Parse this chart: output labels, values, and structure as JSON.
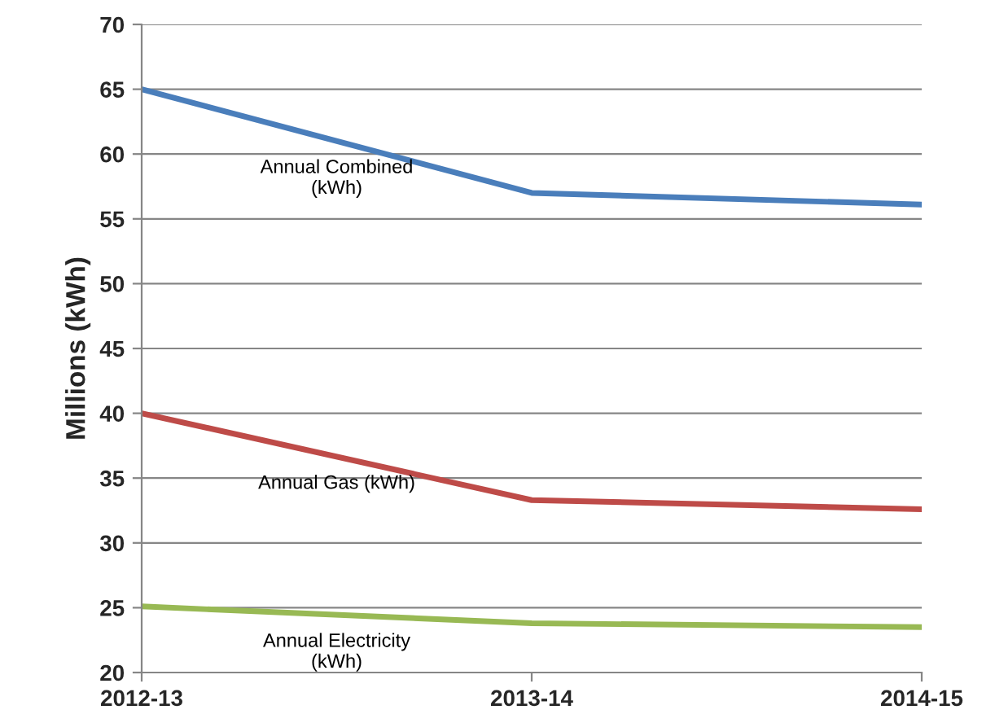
{
  "chart_data": {
    "type": "line",
    "ylabel": "Millions (kWh)",
    "categories": [
      "2012-13",
      "2013-14",
      "2014-15"
    ],
    "series": [
      {
        "name": "Annual Combined\n(kWh)",
        "color": "#4a7ebb",
        "values": [
          65,
          57,
          56.1
        ]
      },
      {
        "name": "Annual Gas (kWh)",
        "color": "#be4b48",
        "values": [
          40,
          33.3,
          32.6
        ]
      },
      {
        "name": "Annual Electricity\n(kWh)",
        "color": "#98b954",
        "values": [
          25.1,
          23.8,
          23.5
        ]
      }
    ],
    "ylim": [
      20,
      70
    ],
    "yticks": [
      20,
      25,
      30,
      35,
      40,
      45,
      50,
      55,
      60,
      65,
      70
    ],
    "grid": "y",
    "legend": false,
    "marker": "none",
    "line_style": "solid"
  }
}
